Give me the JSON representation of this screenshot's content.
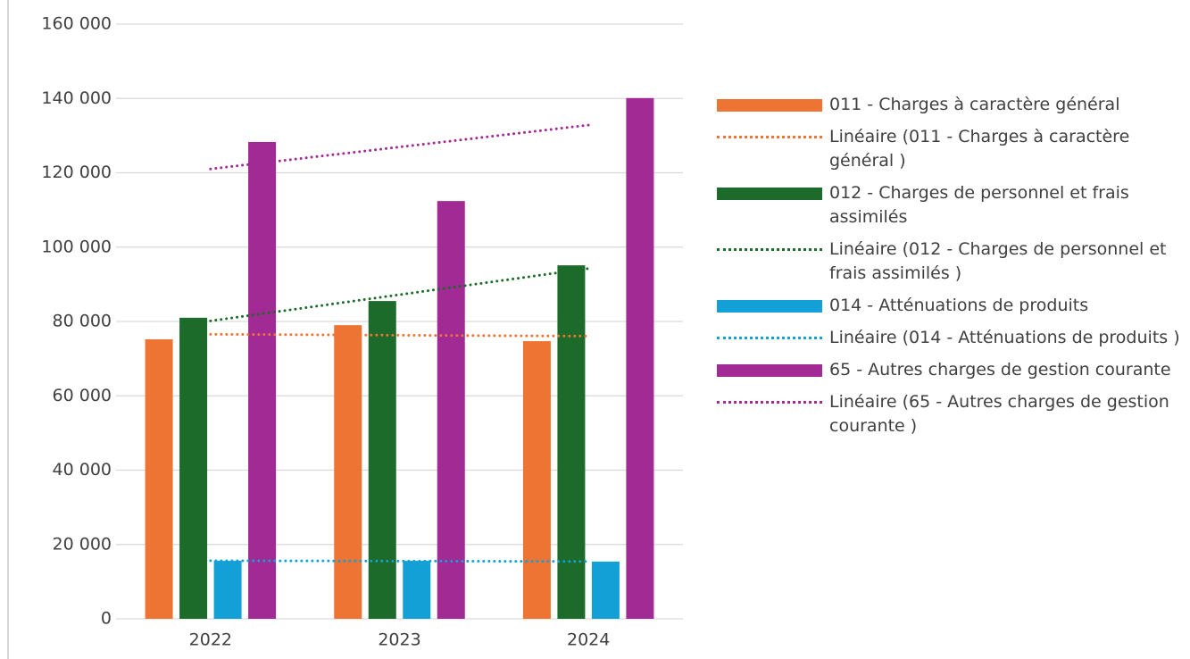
{
  "chart_data": {
    "type": "bar",
    "categories": [
      "2022",
      "2023",
      "2024"
    ],
    "ylim": [
      0,
      160000
    ],
    "yticks": [
      {
        "value": 0,
        "label": "0"
      },
      {
        "value": 20000,
        "label": "20 000"
      },
      {
        "value": 40000,
        "label": "40 000"
      },
      {
        "value": 60000,
        "label": "60 000"
      },
      {
        "value": 80000,
        "label": "80 000"
      },
      {
        "value": 100000,
        "label": "100 000"
      },
      {
        "value": 120000,
        "label": "120 000"
      },
      {
        "value": 140000,
        "label": "140 000"
      },
      {
        "value": 160000,
        "label": "160 000"
      }
    ],
    "grid": true,
    "trendline": "linear",
    "legend": "right",
    "series": [
      {
        "name": "011 - Charges à caractère général",
        "trendline_name": "Linéaire (011 - Charges à caractère général )",
        "color": "#ed7433",
        "values": [
          75200,
          79000,
          74700
        ]
      },
      {
        "name": "012 - Charges de personnel et frais assimilés",
        "trendline_name": "Linéaire (012 - Charges de personnel et frais assimilés )",
        "color": "#1c6b2a",
        "values": [
          81000,
          85500,
          95100
        ]
      },
      {
        "name": "014 - Atténuations de produits",
        "trendline_name": "Linéaire (014 - Atténuations de produits )",
        "color": "#12a0d7",
        "values": [
          15600,
          15600,
          15400
        ]
      },
      {
        "name": "65 - Autres charges de gestion courante",
        "trendline_name": "Linéaire (65 - Autres charges de gestion courante )",
        "color": "#a12a94",
        "values": [
          128300,
          112400,
          140100
        ]
      }
    ]
  }
}
